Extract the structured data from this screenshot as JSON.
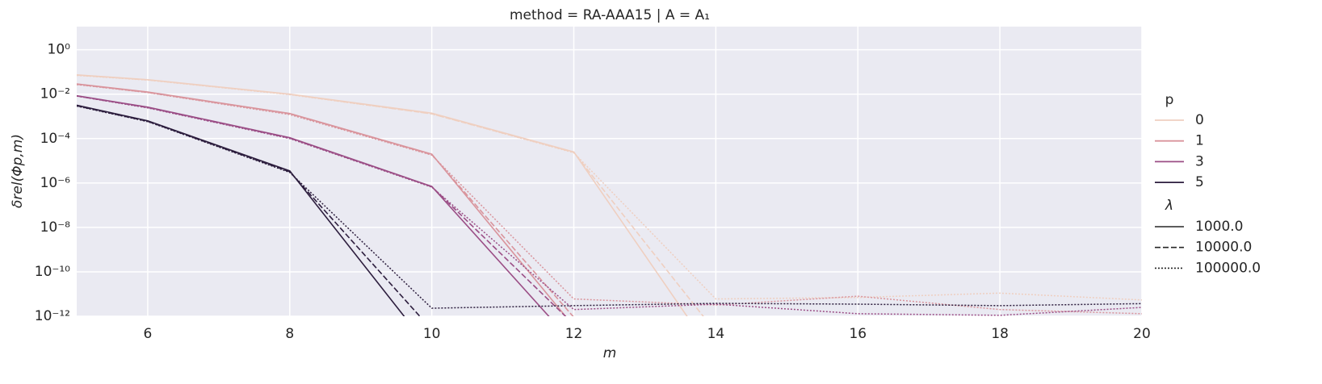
{
  "chart_data": {
    "type": "line",
    "title": "method = RA-AAA15 | A = A₁",
    "x_label": "m",
    "y_label": "δrel(Φp,m)",
    "x": [
      5,
      6,
      8,
      10,
      12,
      14,
      16,
      18,
      20
    ],
    "xlim": [
      5,
      20
    ],
    "xticks": [
      6,
      8,
      10,
      12,
      14,
      16,
      18,
      20
    ],
    "yscale": "log",
    "ylim": [
      1e-12,
      11
    ],
    "yticks": [
      {
        "value": 1,
        "label": "10⁰"
      },
      {
        "value": 0.01,
        "label": "10⁻²"
      },
      {
        "value": 0.0001,
        "label": "10⁻⁴"
      },
      {
        "value": 1e-06,
        "label": "10⁻⁶"
      },
      {
        "value": 1e-08,
        "label": "10⁻⁸"
      },
      {
        "value": 1e-10,
        "label": "10⁻¹⁰"
      },
      {
        "value": 1e-12,
        "label": "10⁻¹²"
      }
    ],
    "grid": true,
    "hue_title": "p",
    "style_title": "λ",
    "styles": [
      {
        "name": "1000.0",
        "dash": "solid"
      },
      {
        "name": "10000.0",
        "dash": "dashed"
      },
      {
        "name": "100000.0",
        "dash": "dotted"
      }
    ],
    "series": [
      {
        "name": "0",
        "color": "#efcfc0",
        "values": [
          [
            0.074,
            0.045,
            0.01,
            0.0014,
            2.5e-05,
            1.3e-14,
            null,
            null,
            null
          ],
          [
            0.072,
            0.044,
            0.0098,
            0.0013,
            2.4e-05,
            1.9e-13,
            null,
            null,
            null
          ],
          [
            0.07,
            0.043,
            0.0095,
            0.0013,
            2.3e-05,
            6e-12,
            7e-12,
            1.1e-11,
            5.4e-12
          ]
        ]
      },
      {
        "name": "1",
        "color": "#d9949c",
        "values": [
          [
            0.029,
            0.0125,
            0.00135,
            2e-05,
            3.5e-13,
            null,
            null,
            null,
            null
          ],
          [
            0.028,
            0.012,
            0.0013,
            1.9e-05,
            9e-13,
            null,
            null,
            null,
            null
          ],
          [
            0.027,
            0.0118,
            0.0012,
            1.8e-05,
            6e-12,
            3.2e-12,
            8e-12,
            2e-12,
            1.3e-12
          ]
        ]
      },
      {
        "name": "3",
        "color": "#9b4e86",
        "values": [
          [
            0.0085,
            0.0026,
            0.00011,
            7e-07,
            5.6e-14,
            null,
            null,
            null,
            null
          ],
          [
            0.0083,
            0.0025,
            0.000105,
            6.8e-07,
            4.3e-13,
            null,
            null,
            null,
            null
          ],
          [
            0.0082,
            0.0024,
            0.0001,
            6.5e-07,
            2e-12,
            3.5e-12,
            1.3e-12,
            1.1e-12,
            2.5e-12
          ]
        ]
      },
      {
        "name": "5",
        "color": "#2d1e3e",
        "values": [
          [
            0.0032,
            0.00063,
            3.5e-06,
            2.6e-14,
            null,
            null,
            null,
            null,
            null
          ],
          [
            0.003,
            0.0006,
            3.2e-06,
            2.5e-13,
            null,
            null,
            null,
            null,
            null
          ],
          [
            0.0029,
            0.00058,
            3e-06,
            2.3e-12,
            3e-12,
            3.8e-12,
            3.5e-12,
            3e-12,
            3.7e-12
          ]
        ]
      }
    ]
  }
}
